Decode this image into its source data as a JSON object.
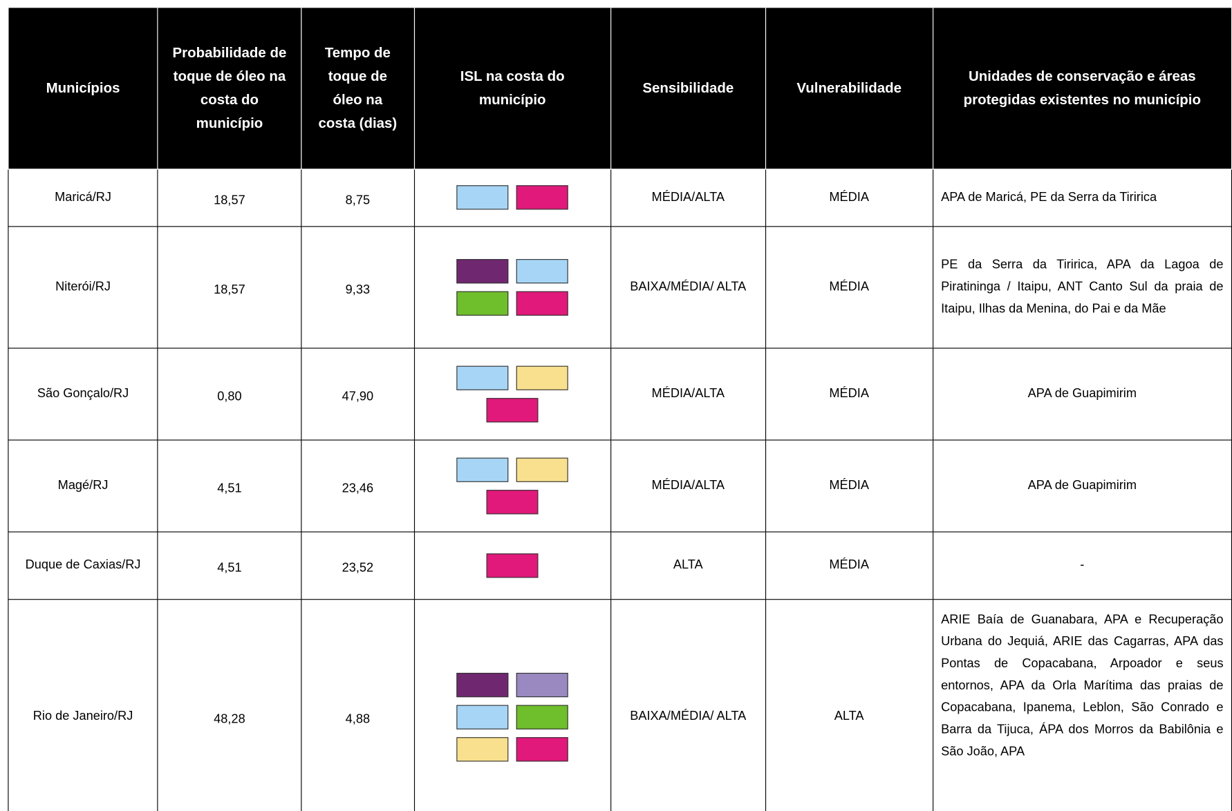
{
  "table": {
    "header": [
      "Municípios",
      "Probabilidade de toque de óleo na costa do município",
      "Tempo de toque de óleo na costa (dias)",
      "ISL na costa do município",
      "Sensibilidade",
      "Vulnerabilidade",
      "Unidades de conservação e áreas protegidas existentes no município"
    ],
    "rows": [
      {
        "municipio": "Maricá/RJ",
        "probabilidade": "18,57",
        "tempo": "8,75",
        "isl": [
          "#a7d5f5",
          "#e0197a"
        ],
        "sensibilidade": "MÉDIA/ALTA",
        "vulnerabilidade": "MÉDIA",
        "unidades": "APA de Maricá, PE da Serra da Tiririca"
      },
      {
        "municipio": "Niterói/RJ",
        "probabilidade": "18,57",
        "tempo": "9,33",
        "isl": [
          "#6f2870",
          "#a7d5f5",
          "#6fbe2c",
          "#e0197a"
        ],
        "sensibilidade": "BAIXA/MÉDIA/ ALTA",
        "vulnerabilidade": "MÉDIA",
        "unidades": "PE da Serra da Tiririca, APA da Lagoa de Piratininga / Itaipu, ANT Canto Sul da praia de Itaipu, Ilhas da Menina, do Pai e da Mãe"
      },
      {
        "municipio": "São Gonçalo/RJ",
        "probabilidade": "0,80",
        "tempo": "47,90",
        "isl": [
          "#a7d5f5",
          "#f8e08e",
          "#e0197a"
        ],
        "sensibilidade": "MÉDIA/ALTA",
        "vulnerabilidade": "MÉDIA",
        "unidades": "APA de Guapimirim"
      },
      {
        "municipio": "Magé/RJ",
        "probabilidade": "4,51",
        "tempo": "23,46",
        "isl": [
          "#a7d5f5",
          "#f8e08e",
          "#e0197a"
        ],
        "sensibilidade": "MÉDIA/ALTA",
        "vulnerabilidade": "MÉDIA",
        "unidades": "APA de Guapimirim"
      },
      {
        "municipio": "Duque de Caxias/RJ",
        "probabilidade": "4,51",
        "tempo": "23,52",
        "isl": [
          "#e0197a"
        ],
        "sensibilidade": "ALTA",
        "vulnerabilidade": "MÉDIA",
        "unidades": "-"
      },
      {
        "municipio": "Rio de Janeiro/RJ",
        "probabilidade": "48,28",
        "tempo": "4,88",
        "isl": [
          "#6f2870",
          "#9a89c0",
          "#a7d5f5",
          "#6fbe2c",
          "#f8e08e",
          "#e0197a"
        ],
        "sensibilidade": "BAIXA/MÉDIA/ ALTA",
        "vulnerabilidade": "ALTA",
        "unidades": "ARIE Baía de Guanabara, APA e Recuperação Urbana do Jequiá, ARIE das Cagarras, APA das Pontas de Copacabana, Arpoador e seus entornos, APA da Orla Marítima das praias de Copacabana, Ipanema, Leblon, São Conrado e Barra da Tijuca, ÁPA dos Morros da Babilônia e São João, APA"
      }
    ]
  }
}
